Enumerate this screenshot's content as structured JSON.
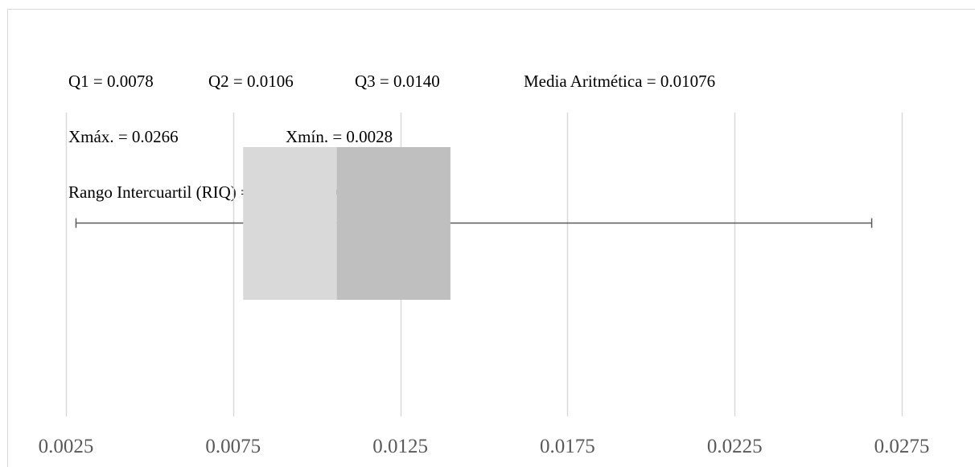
{
  "stats": {
    "q1": "Q1 = 0.0078",
    "q2": "Q2 = 0.0106",
    "q3": "Q3 = 0.0140",
    "mean": "Media Aritmética = 0.01076",
    "xmax": "Xmáx. = 0.0266",
    "xmin": "Xmín. = 0.0028",
    "iqr": "Rango Intercuartil (RIQ) = 0.0140 - 0.0078 = 0.0063"
  },
  "chart_data": {
    "type": "box",
    "title": "",
    "xlabel": "",
    "ylabel": "",
    "orientation": "horizontal",
    "xlim": [
      0.0025,
      0.0275
    ],
    "ticks": [
      "0.0025",
      "0.0075",
      "0.0125",
      "0.0175",
      "0.0225",
      "0.0275"
    ],
    "tick_values": [
      0.0025,
      0.0075,
      0.0125,
      0.0175,
      0.0225,
      0.0275
    ],
    "grid": true,
    "box": {
      "min": 0.0028,
      "q1": 0.0078,
      "median": 0.0106,
      "q3": 0.014,
      "max": 0.0266,
      "mean": 0.01076
    },
    "colors": {
      "lower_box": "#d9d9d9",
      "upper_box": "#bfbfbf",
      "whisker": "#595959",
      "grid": "#d9d9d9",
      "tick_text": "#595959"
    }
  }
}
